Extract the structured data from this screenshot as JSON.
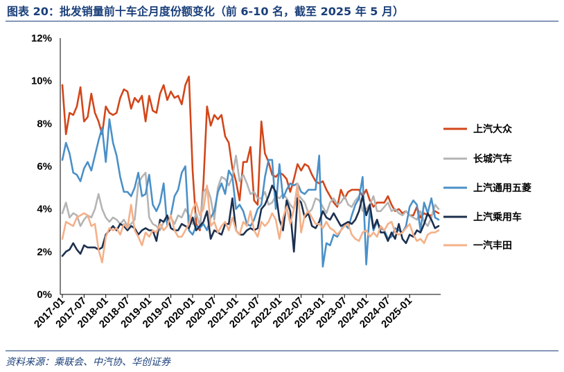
{
  "header": {
    "title": "图表 20：批发销量前十车企月度份额变化（前 6-10 名，截至 2025 年 5 月）"
  },
  "footer": {
    "source": "资料来源：乘联会、中汽协、华创证券"
  },
  "chart_data": {
    "type": "line",
    "title": "批发销量前十车企月度份额变化（前 6-10 名，截至 2025 年 5 月）",
    "xlabel": "",
    "ylabel": "",
    "ylim": [
      0,
      12
    ],
    "yticks": [
      "0%",
      "2%",
      "4%",
      "6%",
      "8%",
      "10%",
      "12%"
    ],
    "xticks": [
      "2017-01",
      "2017-07",
      "2018-01",
      "2018-07",
      "2019-01",
      "2019-07",
      "2020-01",
      "2020-07",
      "2021-01",
      "2021-07",
      "2022-01",
      "2022-07",
      "2023-01",
      "2023-07",
      "2024-01",
      "2024-07",
      "2025-01"
    ],
    "grid": false,
    "legend": "right",
    "series": [
      {
        "name": "上汽大众",
        "color": "#d2461a",
        "values": [
          9.8,
          7.5,
          8.5,
          8.4,
          8.8,
          9.7,
          8.1,
          8.3,
          9.4,
          8.5,
          8.1,
          7.5,
          8.8,
          8.5,
          8.4,
          8.5,
          9.2,
          9.6,
          9.5,
          8.7,
          9.2,
          9.0,
          9.3,
          8.1,
          9.3,
          8.6,
          8.5,
          9.4,
          9.8,
          9.1,
          9.5,
          9.2,
          9.3,
          8.9,
          9.8,
          10.2,
          5.8,
          3.3,
          3.0,
          5.2,
          8.8,
          7.9,
          8.4,
          8.2,
          8.4,
          7.4,
          7.1,
          5.9,
          5.3,
          4.4,
          6.2,
          6.2,
          6.9,
          4.4,
          4.2,
          8.1,
          6.6,
          6.2,
          5.6,
          5.5,
          5.7,
          5.6,
          5.4,
          4.8,
          5.4,
          6.1,
          5.8,
          6.1,
          6.0,
          5.6,
          5.3,
          5.2,
          5.3,
          4.9,
          4.6,
          4.3,
          4.1,
          4.9,
          4.5,
          4.8,
          4.9,
          4.9,
          4.9,
          4.6,
          4.9,
          4.4,
          4.1,
          4.3,
          4.3,
          4.3,
          4.6,
          4.2,
          3.9,
          4.0,
          3.8,
          3.9,
          3.7,
          3.7,
          4.1,
          3.6,
          3.8,
          3.7,
          3.7,
          3.9,
          3.8
        ]
      },
      {
        "name": "长城汽车",
        "color": "#b4b4b4",
        "values": [
          3.8,
          4.3,
          3.6,
          3.8,
          3.7,
          3.2,
          3.5,
          3.7,
          3.6,
          4.0,
          4.7,
          4.0,
          3.6,
          3.4,
          3.6,
          3.5,
          3.3,
          3.5,
          3.2,
          3.3,
          3.5,
          5.2,
          5.5,
          5.7,
          3.6,
          3.3,
          3.2,
          3.0,
          3.4,
          3.5,
          3.6,
          3.3,
          3.7,
          3.6,
          4.0,
          3.7,
          3.3,
          3.8,
          3.2,
          4.8,
          5.0,
          4.5,
          3.5,
          5.0,
          5.5,
          5.4,
          5.1,
          5.5,
          6.5,
          5.3,
          5.6,
          5.2,
          4.7,
          4.8,
          4.5,
          4.5,
          4.8,
          4.2,
          4.3,
          4.6,
          4.5,
          4.7,
          4.5,
          4.2,
          4.0,
          4.7,
          4.5,
          4.3,
          3.8,
          4.0,
          4.5,
          4.4,
          4.1,
          3.8,
          4.3,
          4.5,
          4.2,
          4.3,
          4.6,
          4.2,
          4.1,
          4.4,
          4.6,
          3.9,
          4.0,
          4.2,
          4.6,
          3.9,
          3.9,
          4.1,
          4.3,
          3.9,
          4.0,
          3.8,
          3.7,
          3.9,
          3.7,
          3.6,
          3.5,
          3.9,
          3.4,
          3.2,
          3.6,
          4.2,
          4.0
        ]
      },
      {
        "name": "上汽通用五菱",
        "color": "#4a90c8",
        "values": [
          6.3,
          7.1,
          6.6,
          5.7,
          5.6,
          5.3,
          5.9,
          6.2,
          5.8,
          6.5,
          7.2,
          7.8,
          6.2,
          8.2,
          7.1,
          6.5,
          5.5,
          4.8,
          4.8,
          4.6,
          5.0,
          5.7,
          4.6,
          4.7,
          5.6,
          4.2,
          3.9,
          4.3,
          5.2,
          3.2,
          3.7,
          4.6,
          4.9,
          5.7,
          6.0,
          3.0,
          2.8,
          3.2,
          3.1,
          3.3,
          3.0,
          3.6,
          3.9,
          4.8,
          5.2,
          4.7,
          5.8,
          5.5,
          4.0,
          4.2,
          3.9,
          3.3,
          3.2,
          3.5,
          4.0,
          4.2,
          5.5,
          6.3,
          6.3,
          4.0,
          6.1,
          4.5,
          4.9,
          5.2,
          5.1,
          5.2,
          4.8,
          4.7,
          4.9,
          4.9,
          4.9,
          6.5,
          1.3,
          2.4,
          2.3,
          2.8,
          2.7,
          3.0,
          3.3,
          3.1,
          3.7,
          4.2,
          4.5,
          5.5,
          1.4,
          4.0,
          3.0,
          3.4,
          3.1,
          3.0,
          2.6,
          2.7,
          3.1,
          3.0,
          2.9,
          3.2,
          4.1,
          4.4,
          4.2,
          3.0,
          4.3,
          3.8,
          4.5,
          3.6,
          3.5
        ]
      },
      {
        "name": "上汽乘用车",
        "color": "#1c2f4e",
        "values": [
          1.8,
          2.0,
          2.1,
          2.4,
          2.1,
          1.9,
          2.3,
          2.2,
          2.2,
          2.2,
          2.1,
          2.2,
          2.8,
          3.0,
          3.2,
          3.0,
          3.3,
          3.2,
          3.0,
          3.2,
          3.1,
          2.8,
          3.0,
          3.1,
          3.0,
          3.0,
          2.5,
          3.5,
          3.4,
          3.7,
          3.1,
          3.0,
          3.0,
          3.3,
          3.2,
          3.1,
          3.6,
          3.0,
          3.2,
          3.4,
          3.9,
          2.6,
          3.0,
          2.9,
          2.8,
          3.3,
          3.3,
          4.5,
          3.0,
          2.8,
          2.8,
          3.0,
          3.1,
          3.0,
          3.1,
          4.0,
          4.2,
          4.6,
          5.1,
          4.8,
          3.5,
          3.0,
          4.4,
          3.9,
          2.0,
          4.5,
          4.3,
          3.6,
          3.8,
          3.2,
          3.1,
          3.4,
          3.9,
          3.6,
          3.5,
          3.8,
          3.5,
          3.2,
          3.3,
          3.4,
          3.3,
          3.5,
          3.9,
          4.6,
          3.7,
          4.2,
          3.1,
          3.5,
          2.9,
          2.9,
          2.5,
          2.9,
          2.6,
          3.3,
          2.6,
          2.4,
          2.8,
          2.7,
          3.0,
          2.9,
          3.3,
          3.8,
          3.5,
          3.1,
          3.2
        ]
      },
      {
        "name": "一汽丰田",
        "color": "#f5b088",
        "values": [
          2.6,
          3.4,
          3.3,
          3.2,
          3.6,
          3.7,
          3.8,
          3.7,
          3.2,
          3.3,
          2.1,
          1.5,
          2.7,
          3.1,
          3.0,
          3.1,
          2.8,
          3.3,
          3.1,
          4.2,
          3.0,
          2.7,
          2.3,
          2.9,
          2.7,
          3.0,
          2.9,
          3.3,
          3.0,
          3.2,
          3.7,
          3.0,
          2.7,
          2.7,
          3.0,
          3.3,
          4.0,
          4.3,
          3.7,
          4.0,
          5.1,
          3.2,
          3.4,
          2.9,
          3.2,
          3.4,
          3.0,
          3.6,
          3.0,
          2.8,
          3.4,
          3.2,
          3.9,
          3.0,
          2.7,
          3.4,
          3.2,
          3.4,
          3.8,
          3.5,
          2.6,
          3.6,
          4.1,
          3.3,
          4.0,
          5.2,
          2.9,
          3.7,
          3.9,
          3.6,
          3.3,
          3.3,
          3.1,
          3.4,
          3.1,
          3.0,
          2.8,
          3.0,
          3.2,
          3.3,
          2.8,
          2.6,
          2.5,
          2.9,
          3.0,
          2.7,
          2.9,
          2.7,
          3.2,
          3.0,
          3.3,
          3.4,
          2.9,
          2.8,
          2.9,
          3.1,
          3.3,
          2.8,
          2.5,
          2.6,
          2.4,
          2.8,
          2.9,
          2.9,
          3.0
        ]
      }
    ]
  }
}
